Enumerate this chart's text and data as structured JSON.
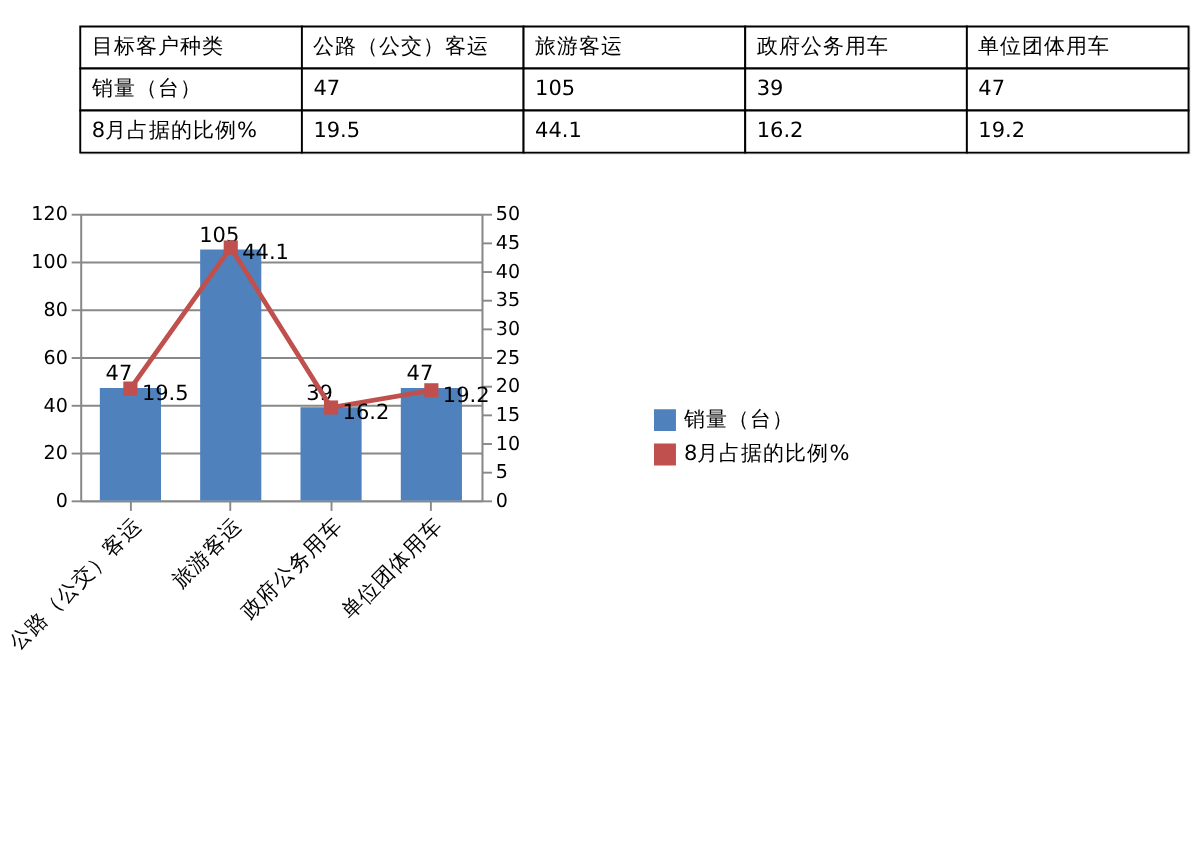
{
  "chart_data": {
    "type": "bar",
    "categories": [
      "公路（公交）客运",
      "旅游客运",
      "政府公务用车",
      "单位团体用车"
    ],
    "series": [
      {
        "name": "销量（台）",
        "color": "#4f81bd",
        "values": [
          47,
          105,
          39,
          47
        ],
        "value_labels": [
          "47",
          "105",
          "39",
          "47"
        ]
      },
      {
        "name": "8月占据的比例%",
        "type": "line",
        "axis": "y2",
        "color": "#c0504d",
        "values": [
          19.5,
          44.1,
          16.2,
          19.2
        ],
        "value_labels": [
          "19.5",
          "44.1",
          "16.2",
          "19.2"
        ]
      }
    ],
    "ylim": [
      0,
      120
    ],
    "yticks": [
      0,
      20,
      40,
      60,
      80,
      100,
      120
    ],
    "y2lim": [
      0,
      50
    ],
    "y2ticks": [
      0,
      5,
      10,
      15,
      20,
      25,
      30,
      35,
      40,
      45,
      50
    ],
    "grid": "y",
    "legend": "right",
    "marker": "square",
    "line_style": "solid",
    "data_labels": true,
    "annotations": [
      "目标客户种类"
    ]
  }
}
